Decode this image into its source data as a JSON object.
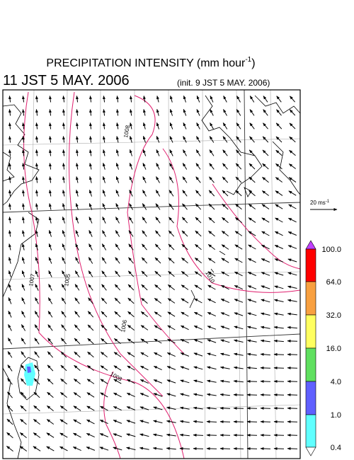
{
  "title": {
    "text": "PRECIPITATION INTENSITY (mm hour",
    "exponent": "-1",
    "close": ")"
  },
  "valid_time": "11 JST 5 MAY. 2006",
  "init_time": "(init. 9 JST 5 MAY. 2006)",
  "wind_reference": {
    "text": "20 ms",
    "exponent": "-1"
  },
  "colorbar": {
    "labels": [
      "100.0",
      "64.0",
      "32.0",
      "16.0",
      "4.0",
      "1.0",
      "0.4"
    ]
  },
  "isobar_labels": [
    "1008",
    "1007",
    "1005",
    "1006",
    "1008",
    "1010"
  ]
}
